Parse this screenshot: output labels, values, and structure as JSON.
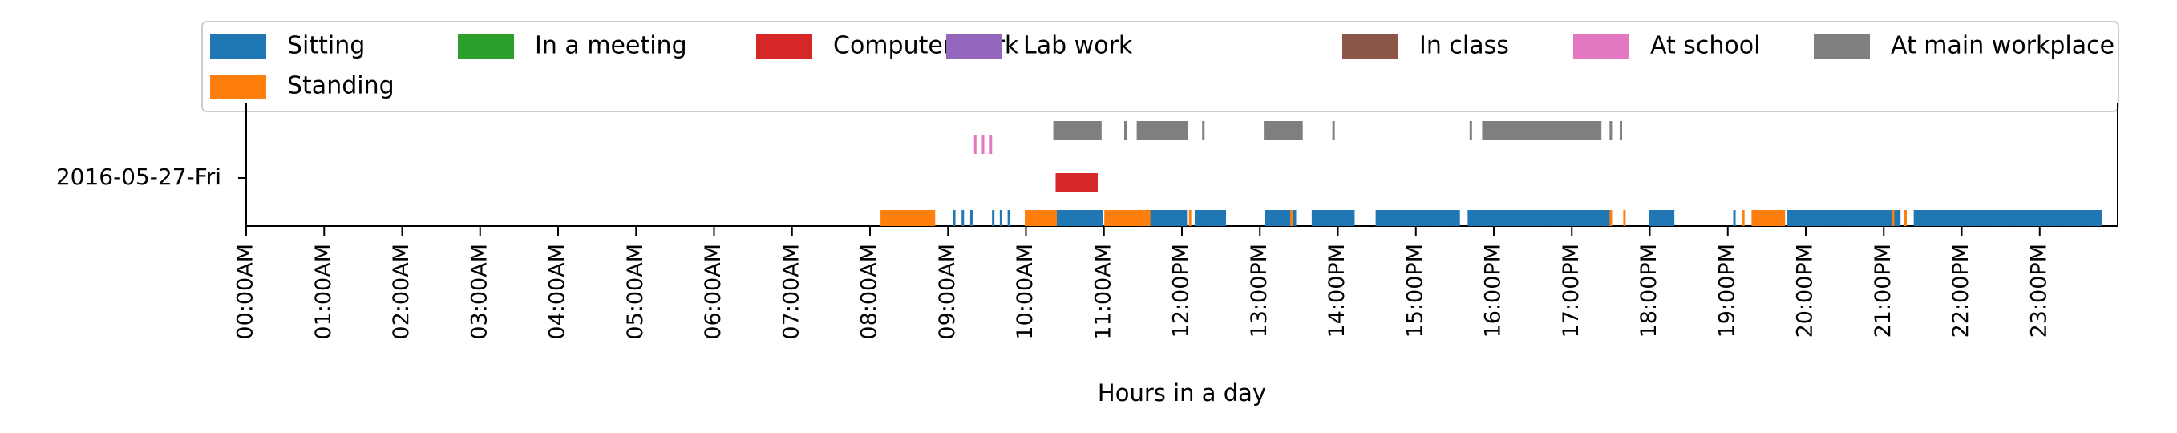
{
  "chart_data": {
    "type": "timeline",
    "title": "",
    "xlabel": "Hours in a day",
    "ylabel": "",
    "xlim": [
      0,
      24
    ],
    "day_label": "2016-05-27-Fri",
    "x_ticks": [
      {
        "hour": 0,
        "label": "00:00AM"
      },
      {
        "hour": 1,
        "label": "01:00AM"
      },
      {
        "hour": 2,
        "label": "02:00AM"
      },
      {
        "hour": 3,
        "label": "03:00AM"
      },
      {
        "hour": 4,
        "label": "04:00AM"
      },
      {
        "hour": 5,
        "label": "05:00AM"
      },
      {
        "hour": 6,
        "label": "06:00AM"
      },
      {
        "hour": 7,
        "label": "07:00AM"
      },
      {
        "hour": 8,
        "label": "08:00AM"
      },
      {
        "hour": 9,
        "label": "09:00AM"
      },
      {
        "hour": 10,
        "label": "10:00AM"
      },
      {
        "hour": 11,
        "label": "11:00AM"
      },
      {
        "hour": 12,
        "label": "12:00PM"
      },
      {
        "hour": 13,
        "label": "13:00PM"
      },
      {
        "hour": 14,
        "label": "14:00PM"
      },
      {
        "hour": 15,
        "label": "15:00PM"
      },
      {
        "hour": 16,
        "label": "16:00PM"
      },
      {
        "hour": 17,
        "label": "17:00PM"
      },
      {
        "hour": 18,
        "label": "18:00PM"
      },
      {
        "hour": 19,
        "label": "19:00PM"
      },
      {
        "hour": 20,
        "label": "20:00PM"
      },
      {
        "hour": 21,
        "label": "21:00PM"
      },
      {
        "hour": 22,
        "label": "22:00PM"
      },
      {
        "hour": 23,
        "label": "23:00PM"
      }
    ],
    "legend_position": "top",
    "series": [
      {
        "name": "Sitting",
        "color": "#1f77b4",
        "lane": 0,
        "segments": [
          [
            9.08,
            9.3
          ],
          [
            9.58,
            9.78
          ],
          [
            10.38,
            10.97
          ],
          [
            11.6,
            12.05
          ],
          [
            12.18,
            12.55
          ],
          [
            13.08,
            13.45
          ],
          [
            13.68,
            14.2
          ],
          [
            14.5,
            15.55
          ],
          [
            15.68,
            17.5
          ],
          [
            18.0,
            18.3
          ],
          [
            19.05,
            19.12
          ],
          [
            19.6,
            19.78
          ],
          [
            19.78,
            21.2
          ],
          [
            21.4,
            23.78
          ]
        ]
      },
      {
        "name": "Standing",
        "color": "#ff7f0e",
        "lane": 0,
        "segments": [
          [
            8.15,
            8.82
          ],
          [
            10.0,
            10.38
          ],
          [
            11.02,
            11.58
          ],
          [
            12.08,
            12.13
          ],
          [
            13.38,
            13.43
          ],
          [
            17.48,
            17.52
          ],
          [
            17.65,
            17.7
          ],
          [
            19.18,
            19.22
          ],
          [
            19.32,
            19.72
          ],
          [
            21.12,
            21.28
          ]
        ]
      },
      {
        "name": "In a meeting",
        "color": "#2ca02c",
        "lane": 1,
        "segments": []
      },
      {
        "name": "Computer work",
        "color": "#d62728",
        "lane": 1,
        "segments": [
          [
            10.38,
            10.92
          ]
        ]
      },
      {
        "name": "Lab work",
        "color": "#9467bd",
        "lane": 2,
        "segments": []
      },
      {
        "name": "In class",
        "color": "#8c564b",
        "lane": 2,
        "segments": []
      },
      {
        "name": "At school",
        "color": "#e377c2",
        "lane": 2,
        "segments": [
          [
            9.35,
            9.55
          ]
        ]
      },
      {
        "name": "At main workplace",
        "color": "#7f7f7f",
        "lane": 3,
        "segments": [
          [
            10.35,
            10.97
          ],
          [
            11.25,
            11.3
          ],
          [
            11.42,
            12.08
          ],
          [
            12.25,
            12.3
          ],
          [
            13.05,
            13.55
          ],
          [
            13.92,
            13.97
          ],
          [
            15.68,
            15.73
          ],
          [
            15.85,
            17.38
          ],
          [
            17.5,
            17.63
          ]
        ]
      }
    ]
  }
}
